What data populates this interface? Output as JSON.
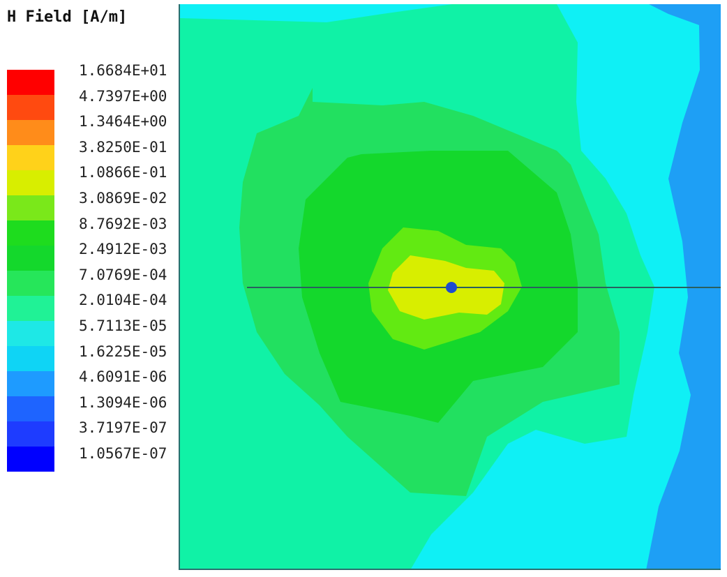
{
  "legend": {
    "title": "H Field [A/m]",
    "levels": [
      {
        "label": "1.6684E+01",
        "color": "#ff0000"
      },
      {
        "label": "4.7397E+00",
        "color": "#ff4a10"
      },
      {
        "label": "1.3464E+00",
        "color": "#ff8c1a"
      },
      {
        "label": "3.8250E-01",
        "color": "#ffd21a"
      },
      {
        "label": "1.0866E-01",
        "color": "#d8ee00"
      },
      {
        "label": "3.0869E-02",
        "color": "#7ae81a"
      },
      {
        "label": "8.7692E-03",
        "color": "#1edc1e"
      },
      {
        "label": "2.4912E-03",
        "color": "#14d82c"
      },
      {
        "label": "7.0769E-04",
        "color": "#26e65a"
      },
      {
        "label": "2.0104E-04",
        "color": "#20f296"
      },
      {
        "label": "5.7113E-05",
        "color": "#1ee8e6"
      },
      {
        "label": "1.6225E-05",
        "color": "#0fd4f5"
      },
      {
        "label": "4.6091E-06",
        "color": "#1e9bff"
      },
      {
        "label": "1.3094E-06",
        "color": "#1e64ff"
      },
      {
        "label": "3.7197E-07",
        "color": "#1e3cff"
      },
      {
        "label": "1.0567E-07",
        "color": "#0000ff"
      }
    ]
  },
  "plot": {
    "field_colors": {
      "outer_blue": "#1e9ff5",
      "cyan": "#0ff0f5",
      "aqua_green": "#10f2a6",
      "light_green": "#22e060",
      "green": "#14d82c",
      "yellow_green": "#62ea12",
      "yellow": "#d8ee00"
    },
    "line_color": "#2a5f5f",
    "source_color": "#1e4ccf"
  }
}
